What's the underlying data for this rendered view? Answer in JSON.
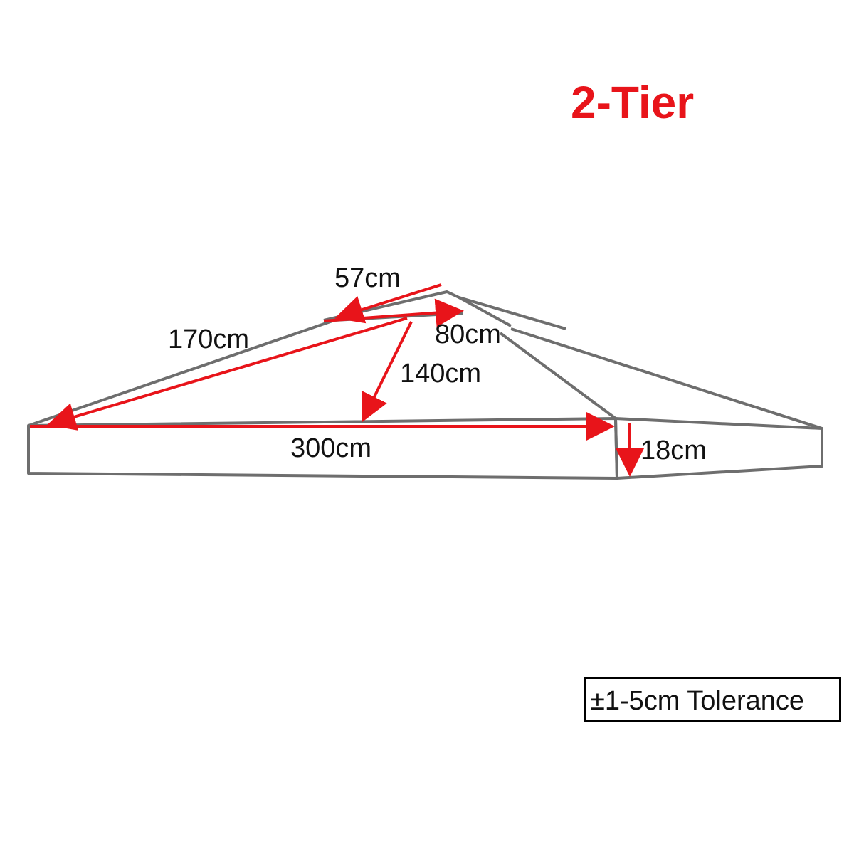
{
  "title": "2-Tier",
  "dimensions": {
    "top_tier_width": "57cm",
    "top_tier_depth": "80cm",
    "slope_length": "170cm",
    "slope_depth": "140cm",
    "base_width": "300cm",
    "skirt_height": "18cm"
  },
  "tolerance": "±1-5cm Tolerance",
  "colors": {
    "outline": "#6e6e6e",
    "arrow": "#e8141a",
    "title": "#e8141a",
    "text": "#111111"
  }
}
